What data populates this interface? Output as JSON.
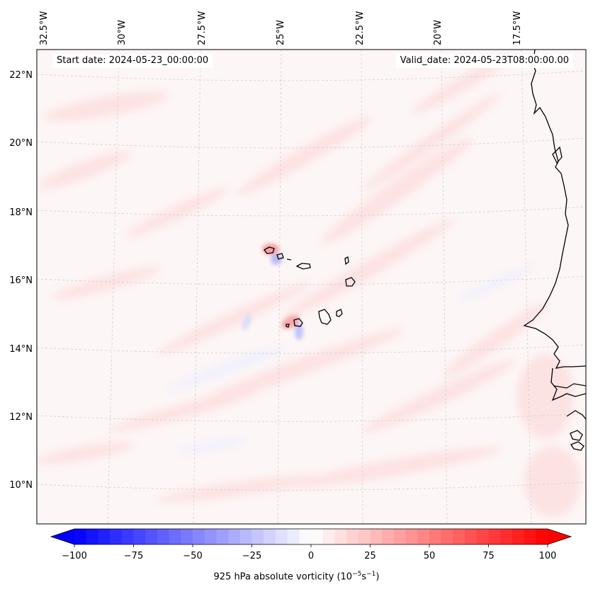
{
  "annotations": {
    "start_date": "Start date: 2024-05-23_00:00:00",
    "valid_date": "Valid_date: 2024-05-23T08:00:00.00"
  },
  "axes": {
    "lon_labels": [
      "32.5°W",
      "30°W",
      "27.5°W",
      "25°W",
      "22.5°W",
      "20°W",
      "17.5°W"
    ],
    "lat_labels": [
      "22°N",
      "20°N",
      "18°N",
      "16°N",
      "14°N",
      "12°N",
      "10°N"
    ]
  },
  "colorbar": {
    "title_prefix": "925 hPa absolute vorticity (10",
    "title_exp1": "−5",
    "title_mid": "s",
    "title_exp2": "−1",
    "title_suffix": ")",
    "ticks": [
      "−100",
      "−75",
      "−50",
      "−25",
      "0",
      "25",
      "50",
      "75",
      "100"
    ],
    "tick_values": [
      -100,
      -75,
      -50,
      -25,
      0,
      25,
      50,
      75,
      100
    ],
    "range": [
      -100,
      100
    ],
    "levels": 40,
    "extend": "both",
    "colormap": "bwr",
    "low_color": "#0000ff",
    "mid_color": "#ffffff",
    "high_color": "#ff0000"
  },
  "map": {
    "projection": "Lambert Conformal",
    "background_color": "#fdf6f6",
    "gridline_color": "#c8c8c8",
    "coastline_color": "#000000"
  }
}
